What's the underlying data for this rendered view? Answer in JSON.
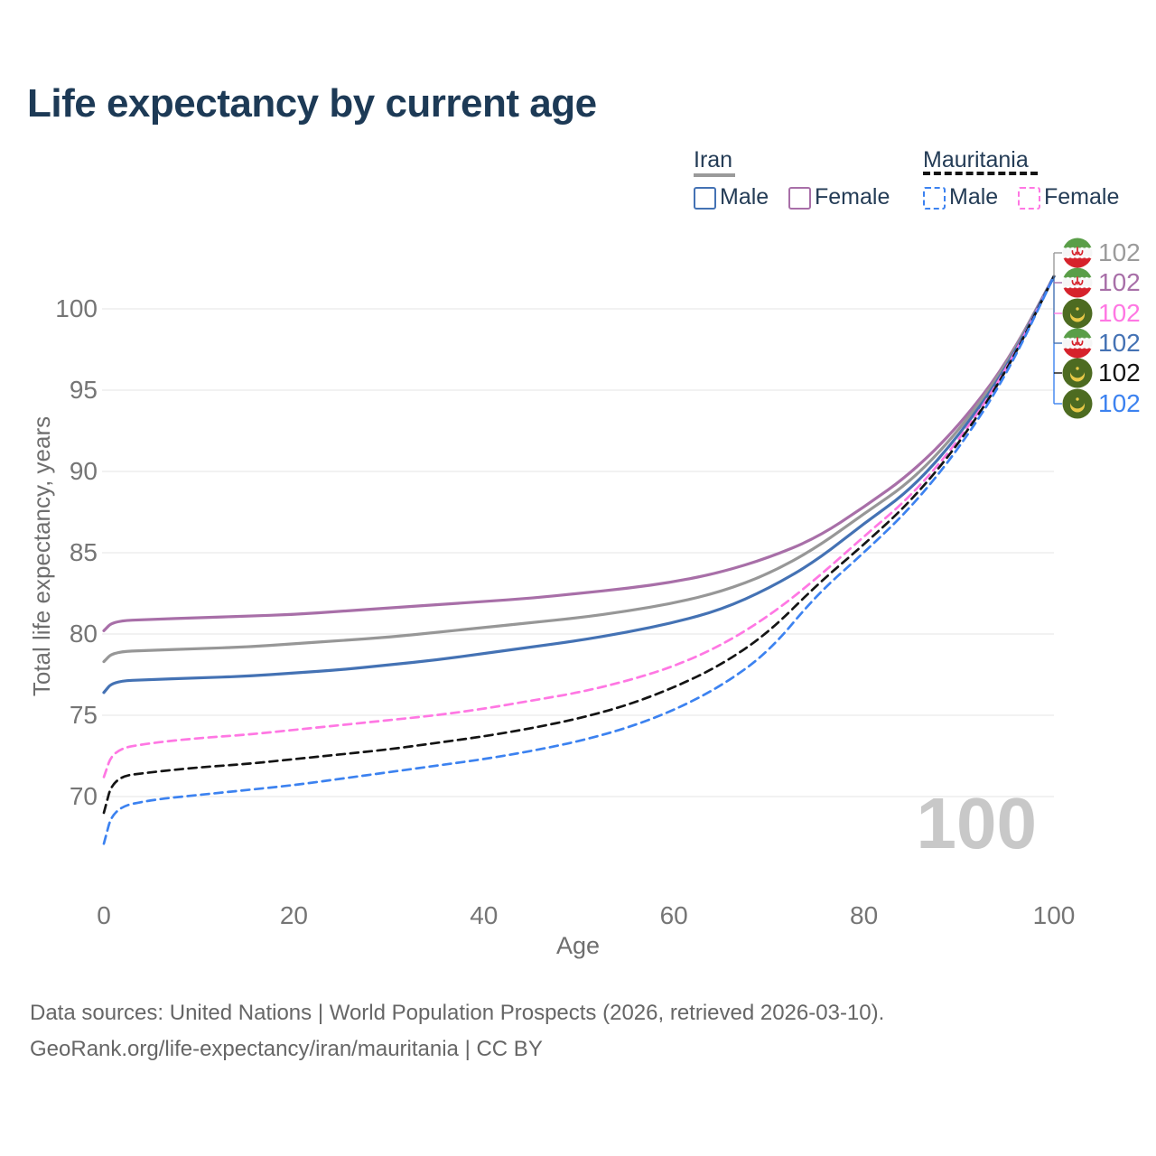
{
  "title": "Life expectancy by current age",
  "legend": {
    "iran": {
      "label": "Iran",
      "male": "Male",
      "female": "Female"
    },
    "mauritania": {
      "label": "Mauritania",
      "male": "Male",
      "female": "Female"
    }
  },
  "axes": {
    "y": {
      "title": "Total life expectancy, years",
      "ticks": [
        100,
        95,
        90,
        85,
        80,
        75,
        70
      ]
    },
    "x": {
      "title": "Age",
      "ticks": [
        0,
        20,
        40,
        60,
        80,
        100
      ]
    }
  },
  "watermark": "100",
  "end_labels": [
    {
      "flag": "iran",
      "value": "102",
      "color": "#9b9b9b",
      "series": "iran-both"
    },
    {
      "flag": "iran",
      "value": "102",
      "color": "#a86fa8",
      "series": "iran-female"
    },
    {
      "flag": "mauritania",
      "value": "102",
      "color": "#ff77e3",
      "series": "mauritania-female"
    },
    {
      "flag": "iran",
      "value": "102",
      "color": "#4472b4",
      "series": "iran-male"
    },
    {
      "flag": "mauritania",
      "value": "102",
      "color": "#141414",
      "series": "mauritania-both"
    },
    {
      "flag": "mauritania",
      "value": "102",
      "color": "#3c82f0",
      "series": "mauritania-male"
    }
  ],
  "footer": {
    "line1": "Data sources: United Nations | World Population Prospects (2026, retrieved 2026-03-10).",
    "line2": "GeoRank.org/life-expectancy/iran/mauritania | CC BY"
  },
  "colors": {
    "grid": "#e9e9e9",
    "title": "#1d3a56",
    "iran_female": "#a86fa8",
    "iran_both": "#979797",
    "iran_male": "#4472b4",
    "mauritania_female": "#ff77e3",
    "mauritania_both": "#141414",
    "mauritania_male": "#3c82f0"
  },
  "chart_data": {
    "type": "line",
    "title": "Life expectancy by current age",
    "xlabel": "Age",
    "ylabel": "Total life expectancy, years",
    "xlim": [
      0,
      100
    ],
    "ylim": [
      66,
      103
    ],
    "grid": "horizontal-only",
    "legend_position": "top-right",
    "x": [
      0,
      1,
      5,
      10,
      15,
      20,
      25,
      30,
      35,
      40,
      45,
      50,
      55,
      60,
      65,
      70,
      75,
      80,
      85,
      90,
      95,
      100
    ],
    "series": [
      {
        "name": "Iran Female",
        "key": "iran-female",
        "color": "#a86fa8",
        "style": "solid",
        "values": [
          80.2,
          80.8,
          80.9,
          81.0,
          81.1,
          81.2,
          81.4,
          81.6,
          81.8,
          82.0,
          82.2,
          82.5,
          82.8,
          83.2,
          83.8,
          84.7,
          85.9,
          87.8,
          89.9,
          92.8,
          96.6,
          102
        ]
      },
      {
        "name": "Iran Both sexes",
        "key": "iran-both",
        "color": "#979797",
        "style": "solid",
        "values": [
          78.3,
          78.9,
          79.0,
          79.1,
          79.2,
          79.4,
          79.6,
          79.8,
          80.1,
          80.4,
          80.7,
          81.0,
          81.4,
          81.9,
          82.6,
          83.7,
          85.3,
          87.4,
          89.4,
          92.5,
          96.5,
          102
        ]
      },
      {
        "name": "Iran Male",
        "key": "iran-male",
        "color": "#4472b4",
        "style": "solid",
        "values": [
          76.4,
          77.1,
          77.2,
          77.3,
          77.4,
          77.6,
          77.8,
          78.1,
          78.4,
          78.8,
          79.2,
          79.6,
          80.1,
          80.7,
          81.5,
          82.8,
          84.5,
          86.8,
          88.9,
          92.2,
          96.3,
          102
        ]
      },
      {
        "name": "Mauritania Female",
        "key": "mauritania-female",
        "color": "#ff77e3",
        "style": "dashed",
        "values": [
          71.2,
          72.9,
          73.3,
          73.6,
          73.8,
          74.1,
          74.4,
          74.7,
          75.0,
          75.4,
          75.9,
          76.4,
          77.1,
          78.0,
          79.3,
          81.1,
          83.4,
          86.0,
          88.5,
          91.9,
          96.2,
          102
        ]
      },
      {
        "name": "Mauritania Both sexes",
        "key": "mauritania-both",
        "color": "#141414",
        "style": "dashed",
        "values": [
          69.0,
          71.2,
          71.5,
          71.8,
          72.0,
          72.3,
          72.6,
          72.9,
          73.3,
          73.7,
          74.2,
          74.8,
          75.6,
          76.7,
          78.1,
          80.1,
          83.0,
          85.5,
          88.2,
          91.7,
          96.1,
          102
        ]
      },
      {
        "name": "Mauritania Male",
        "key": "mauritania-male",
        "color": "#3c82f0",
        "style": "dashed",
        "values": [
          67.1,
          69.3,
          69.8,
          70.1,
          70.4,
          70.7,
          71.1,
          71.5,
          71.9,
          72.3,
          72.8,
          73.4,
          74.2,
          75.3,
          76.8,
          78.9,
          82.4,
          85.0,
          87.8,
          91.4,
          95.9,
          102
        ]
      }
    ]
  }
}
